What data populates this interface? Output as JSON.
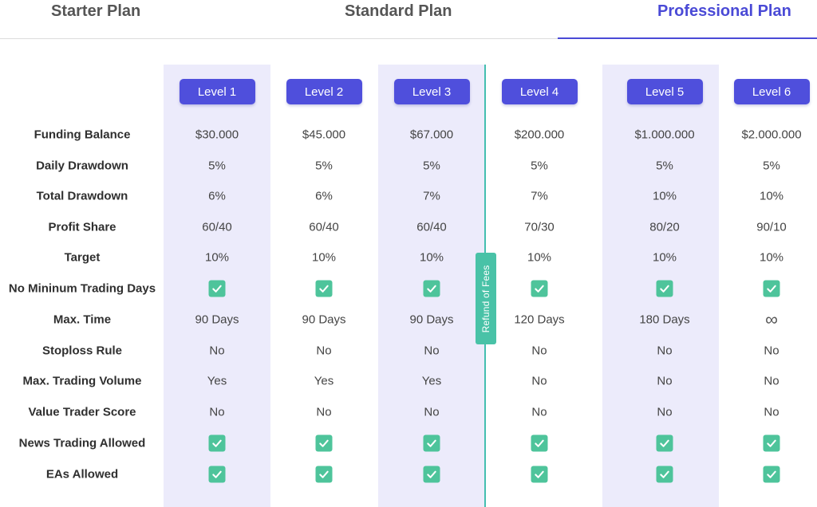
{
  "tabs": [
    {
      "label": "Starter Plan",
      "active": false
    },
    {
      "label": "Standard Plan",
      "active": false
    },
    {
      "label": "Professional Plan",
      "active": true
    }
  ],
  "levels": [
    "Level 1",
    "Level 2",
    "Level 3",
    "Level 4",
    "Level 5",
    "Level 6"
  ],
  "refund_label": "Refund of Fees",
  "colors": {
    "accent": "#4f4fdc",
    "column_bg": "#ecebfb",
    "check": "#4ec49b",
    "divider": "#44bfb0"
  },
  "rows": [
    {
      "label": "Funding Balance",
      "type": "text",
      "values": [
        "$30.000",
        "$45.000",
        "$67.000",
        "$200.000",
        "$1.000.000",
        "$2.000.000"
      ]
    },
    {
      "label": "Daily Drawdown",
      "type": "text",
      "values": [
        "5%",
        "5%",
        "5%",
        "5%",
        "5%",
        "5%"
      ]
    },
    {
      "label": "Total Drawdown",
      "type": "text",
      "values": [
        "6%",
        "6%",
        "7%",
        "7%",
        "10%",
        "10%"
      ]
    },
    {
      "label": "Profit Share",
      "type": "text",
      "values": [
        "60/40",
        "60/40",
        "60/40",
        "70/30",
        "80/20",
        "90/10"
      ]
    },
    {
      "label": "Target",
      "type": "text",
      "values": [
        "10%",
        "10%",
        "10%",
        "10%",
        "10%",
        "10%"
      ]
    },
    {
      "label": "No Mininum Trading Days",
      "type": "check",
      "values": [
        true,
        true,
        true,
        true,
        true,
        true
      ]
    },
    {
      "label": "Max. Time",
      "type": "text",
      "values": [
        "90 Days",
        "90 Days",
        "90 Days",
        "120 Days",
        "180 Days",
        "∞"
      ]
    },
    {
      "label": "Stoploss Rule",
      "type": "text",
      "values": [
        "No",
        "No",
        "No",
        "No",
        "No",
        "No"
      ]
    },
    {
      "label": "Max. Trading Volume",
      "type": "text",
      "values": [
        "Yes",
        "Yes",
        "Yes",
        "No",
        "No",
        "No"
      ]
    },
    {
      "label": "Value Trader Score",
      "type": "text",
      "values": [
        "No",
        "No",
        "No",
        "No",
        "No",
        "No"
      ]
    },
    {
      "label": "News Trading Allowed",
      "type": "check",
      "values": [
        true,
        true,
        true,
        true,
        true,
        true
      ]
    },
    {
      "label": "EAs Allowed",
      "type": "check",
      "values": [
        true,
        true,
        true,
        true,
        true,
        true
      ]
    }
  ]
}
